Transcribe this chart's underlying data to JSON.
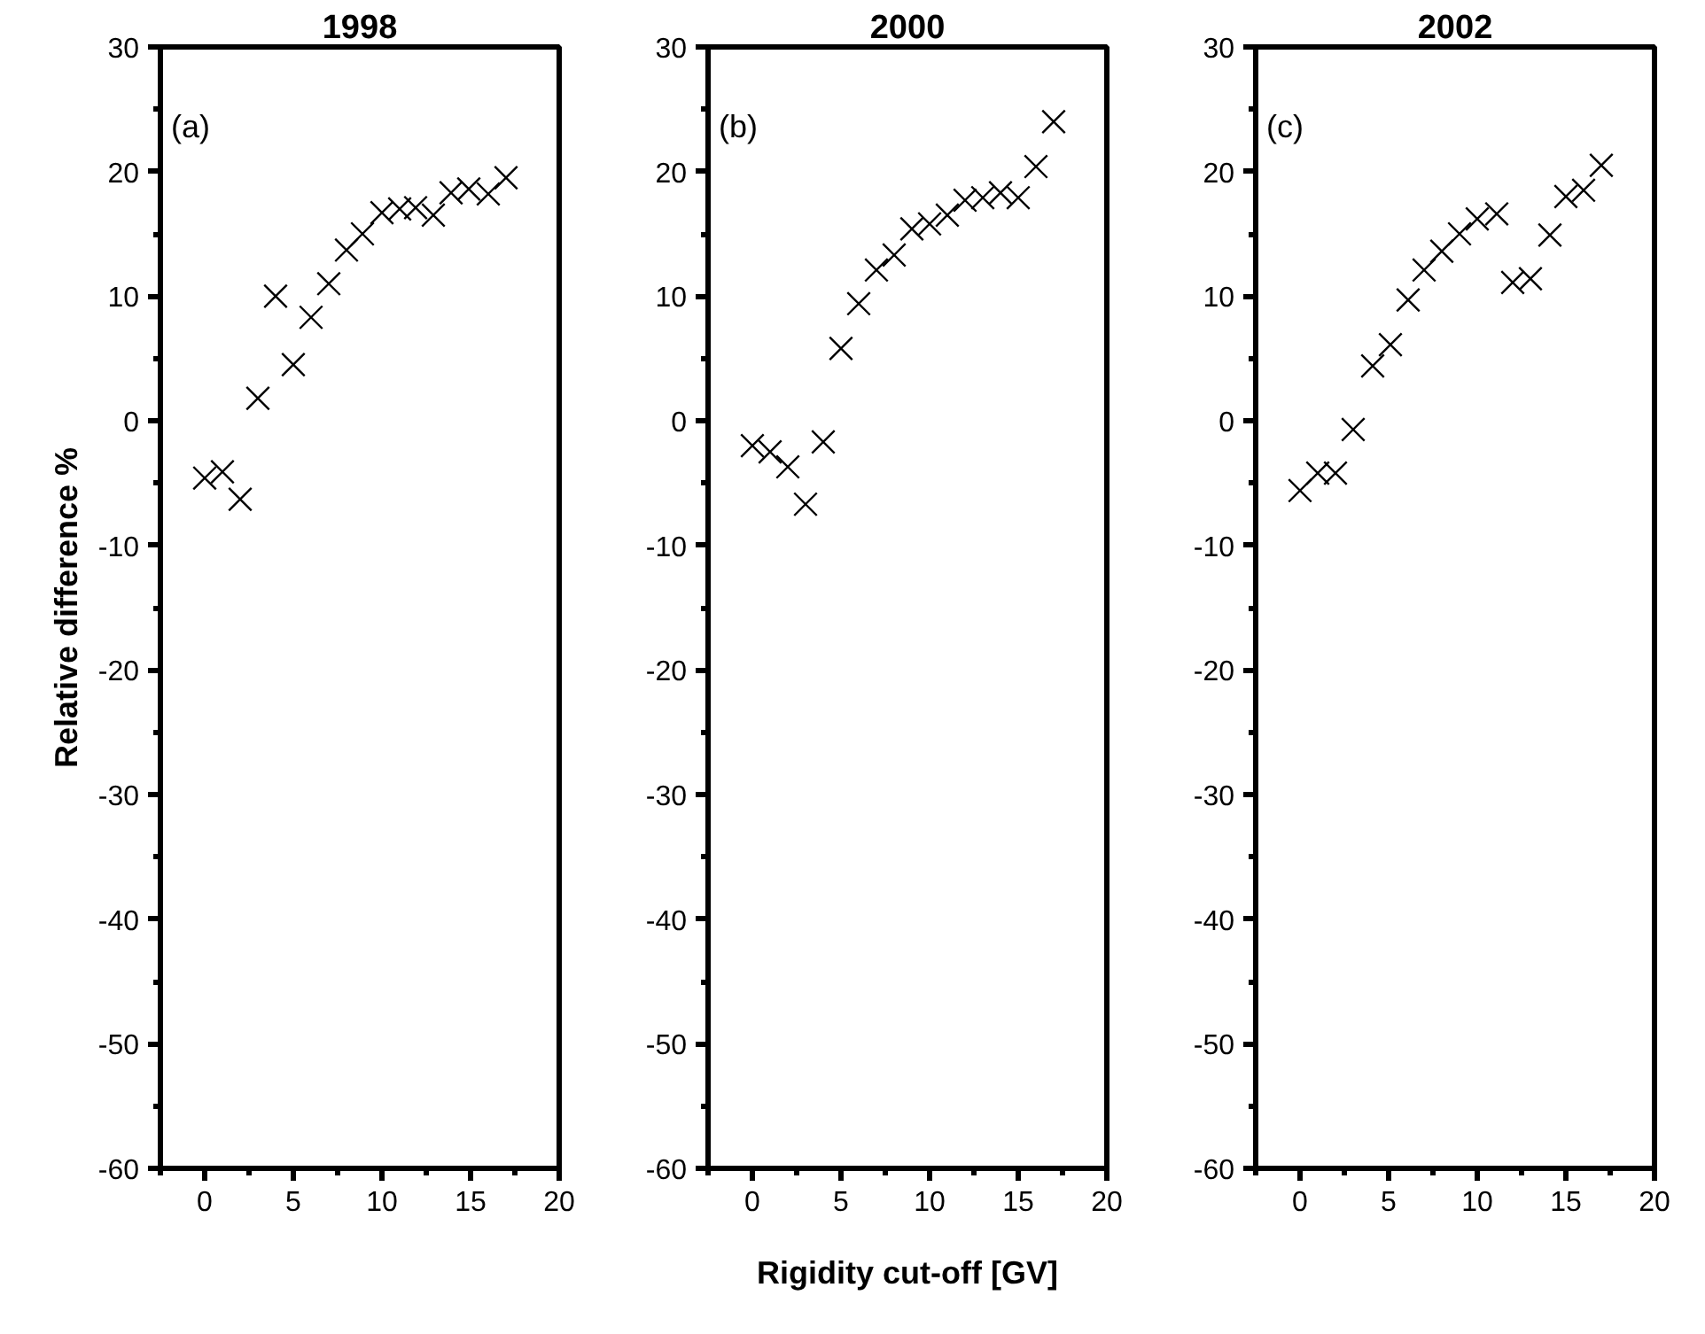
{
  "chart_data": [
    {
      "type": "scatter",
      "title": "1998",
      "ylabel": "Relative difference %",
      "annotations": [
        "(a)"
      ],
      "marker": "cross",
      "grid": false,
      "xlim": [
        -2.5,
        20
      ],
      "xticks": [
        0,
        5,
        10,
        15,
        20
      ],
      "ylim": [
        -60,
        30
      ],
      "yticks": [
        -60,
        -50,
        -40,
        -30,
        -20,
        -10,
        0,
        10,
        20,
        30
      ],
      "series": [
        {
          "color": "#000000",
          "x": [
            0,
            1,
            2,
            3,
            4,
            5,
            6,
            7,
            8,
            8.9,
            10,
            11,
            11.9,
            12.9,
            13.9,
            14.9,
            16,
            17
          ],
          "values": [
            -4.6,
            -4.1,
            -6.3,
            1.8,
            10.0,
            4.5,
            8.3,
            11.0,
            13.7,
            15.0,
            16.7,
            17.0,
            17.1,
            16.5,
            18.3,
            18.6,
            18.2,
            19.5
          ]
        }
      ]
    },
    {
      "type": "scatter",
      "title": "2000",
      "xlabel": "Rigidity cut-off [GV]",
      "annotations": [
        "(b)"
      ],
      "marker": "cross",
      "grid": false,
      "xlim": [
        -2.5,
        20
      ],
      "xticks": [
        0,
        5,
        10,
        15,
        20
      ],
      "ylim": [
        -60,
        30
      ],
      "yticks": [
        -60,
        -50,
        -40,
        -30,
        -20,
        -10,
        0,
        10,
        20,
        30
      ],
      "series": [
        {
          "color": "#000000",
          "x": [
            0,
            1,
            2,
            3,
            4,
            5,
            6,
            7,
            8,
            9,
            10,
            11,
            12,
            13,
            14,
            15,
            16,
            17
          ],
          "values": [
            -2.0,
            -2.5,
            -3.7,
            -6.7,
            -1.7,
            5.8,
            9.4,
            12.1,
            13.3,
            15.4,
            15.8,
            16.5,
            17.7,
            17.9,
            18.3,
            17.9,
            20.4,
            24.0
          ]
        }
      ]
    },
    {
      "type": "scatter",
      "title": "2002",
      "annotations": [
        "(c)"
      ],
      "marker": "cross",
      "grid": false,
      "xlim": [
        -2.5,
        20
      ],
      "xticks": [
        0,
        5,
        10,
        15,
        20
      ],
      "ylim": [
        -60,
        30
      ],
      "yticks": [
        -60,
        -50,
        -40,
        -30,
        -20,
        -10,
        0,
        10,
        20,
        30
      ],
      "series": [
        {
          "color": "#000000",
          "x": [
            0,
            1,
            2,
            3,
            4.1,
            5.1,
            6.1,
            7,
            8,
            9,
            10,
            11.1,
            12,
            13,
            14.1,
            15,
            16,
            17
          ],
          "values": [
            -5.6,
            -4.2,
            -4.2,
            -0.7,
            4.4,
            6.1,
            9.7,
            12.1,
            13.6,
            15.0,
            16.2,
            16.6,
            11.1,
            11.4,
            14.9,
            18.0,
            18.5,
            20.5
          ]
        }
      ]
    }
  ]
}
